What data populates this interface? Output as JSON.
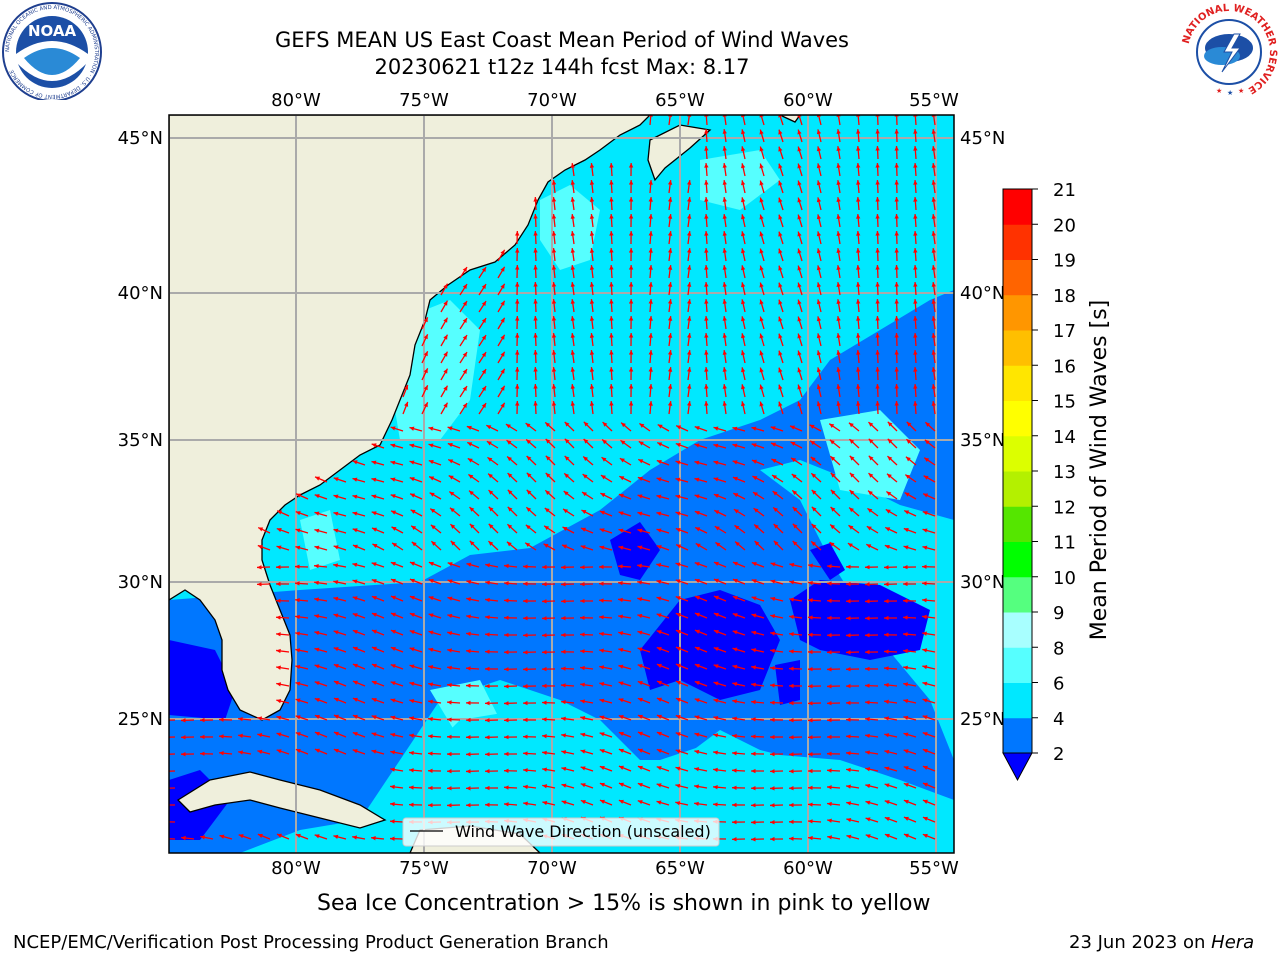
{
  "header": {
    "title_line1": "GEFS MEAN US East Coast Mean Period of Wind Waves",
    "title_line2": "20230621 t12z 144h fcst   Max: 8.17"
  },
  "logos": {
    "left": {
      "name": "noaa-logo",
      "text": "NOAA",
      "ring_text": "NATIONAL OCEANIC AND ATMOSPHERIC ADMINISTRATION · U.S. DEPARTMENT OF COMMERCE"
    },
    "right": {
      "name": "nws-logo",
      "ring_text": "NATIONAL WEATHER SERVICE"
    }
  },
  "map": {
    "lon_ticks": [
      "80°W",
      "75°W",
      "70°W",
      "65°W",
      "60°W",
      "55°W"
    ],
    "lat_ticks": [
      "45°N",
      "40°N",
      "35°N",
      "30°N",
      "25°N"
    ],
    "legend_label": "Wind Wave Direction (unscaled)",
    "arrow_color": "#ff0000",
    "land_color": "#efefdc"
  },
  "colorbar": {
    "label": "Mean Period of Wind Waves [s]",
    "ticks": [
      "2",
      "4",
      "6",
      "8",
      "9",
      "10",
      "11",
      "12",
      "13",
      "14",
      "15",
      "16",
      "17",
      "18",
      "19",
      "20",
      "21"
    ],
    "colors": [
      "#0000ff",
      "#0077ff",
      "#00e8ff",
      "#56ffff",
      "#a8ffff",
      "#55ff7f",
      "#00ff00",
      "#55e600",
      "#b4f000",
      "#dcff00",
      "#ffff00",
      "#ffe600",
      "#ffbf00",
      "#ff9600",
      "#ff6400",
      "#ff3200",
      "#ff0000"
    ]
  },
  "captions": {
    "sea_ice": "Sea Ice Concentration > 15% is shown in pink to yellow",
    "footer_left": "NCEP/EMC/Verification Post Processing Product Generation Branch",
    "footer_date": "23 Jun 2023 on ",
    "footer_host": "Hera"
  }
}
